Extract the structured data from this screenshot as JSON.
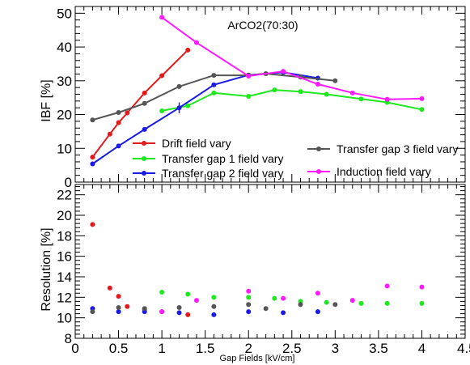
{
  "chart_data": {
    "type": "line",
    "xlabel": "Gap Fields [kV/cm]",
    "xlim": [
      0,
      4.5
    ],
    "x_ticks": [
      "0",
      "0.5",
      "1",
      "1.5",
      "2",
      "2.5",
      "3",
      "3.5",
      "4",
      "4.5"
    ],
    "annotation": "ArCO2(70:30)",
    "legend_placement": "lower-right of upper panel",
    "panels": [
      {
        "id": "ibf",
        "ylabel": "IBF [%]",
        "ylim": [
          0,
          52
        ],
        "y_ticks": [
          "0",
          "10",
          "20",
          "30",
          "40",
          "50"
        ],
        "style": "line+markers"
      },
      {
        "id": "resolution",
        "ylabel": "Resolution [%]",
        "ylim": [
          8,
          23
        ],
        "y_ticks": [
          "8",
          "10",
          "12",
          "14",
          "16",
          "18",
          "20",
          "22"
        ],
        "style": "markers"
      }
    ],
    "series": [
      {
        "name": "Drift field vary",
        "color": "#e31a1c",
        "ibf": [
          [
            0.2,
            7.4
          ],
          [
            0.4,
            14.2
          ],
          [
            0.5,
            17.6
          ],
          [
            0.6,
            20.5
          ],
          [
            0.8,
            26.4
          ],
          [
            1.0,
            31.5
          ],
          [
            1.3,
            39.1
          ]
        ],
        "resolution": [
          [
            0.2,
            19.1
          ],
          [
            0.4,
            12.9
          ],
          [
            0.5,
            12.1
          ],
          [
            0.6,
            11.1
          ],
          [
            0.8,
            10.8
          ],
          [
            1.0,
            10.6
          ],
          [
            1.3,
            10.3
          ]
        ]
      },
      {
        "name": "Transfer gap 1 field vary",
        "color": "#1ee81e",
        "ibf": [
          [
            1.0,
            21.1
          ],
          [
            1.3,
            22.6
          ],
          [
            1.6,
            26.4
          ],
          [
            2.0,
            25.4
          ],
          [
            2.3,
            27.3
          ],
          [
            2.6,
            26.8
          ],
          [
            2.9,
            26.0
          ],
          [
            3.3,
            24.6
          ],
          [
            3.6,
            23.6
          ],
          [
            4.0,
            21.5
          ]
        ],
        "resolution": [
          [
            1.0,
            12.5
          ],
          [
            1.3,
            12.3
          ],
          [
            1.6,
            12.0
          ],
          [
            2.0,
            12.0
          ],
          [
            2.3,
            11.9
          ],
          [
            2.6,
            11.6
          ],
          [
            2.9,
            11.5
          ],
          [
            3.3,
            11.4
          ],
          [
            3.6,
            11.4
          ],
          [
            4.0,
            11.4
          ]
        ]
      },
      {
        "name": "Transfer gap 2 field vary",
        "color": "#1a1ae6",
        "ibf": [
          [
            0.2,
            5.4
          ],
          [
            0.5,
            10.7
          ],
          [
            0.8,
            15.6
          ],
          [
            1.2,
            22.0
          ],
          [
            1.6,
            28.8
          ],
          [
            2.0,
            31.7
          ],
          [
            2.4,
            32.5
          ],
          [
            2.8,
            30.8
          ]
        ],
        "resolution": [
          [
            0.2,
            10.9
          ],
          [
            0.5,
            10.6
          ],
          [
            0.8,
            10.6
          ],
          [
            1.2,
            10.5
          ],
          [
            1.6,
            10.3
          ],
          [
            2.0,
            10.6
          ],
          [
            2.4,
            10.5
          ],
          [
            2.8,
            10.6
          ]
        ]
      },
      {
        "name": "Transfer gap 3 field vary",
        "color": "#555555",
        "ibf": [
          [
            0.2,
            18.4
          ],
          [
            0.5,
            20.6
          ],
          [
            0.8,
            23.3
          ],
          [
            1.2,
            28.3
          ],
          [
            1.6,
            31.6
          ],
          [
            2.0,
            31.6
          ],
          [
            2.2,
            32.1
          ],
          [
            2.6,
            31.1
          ],
          [
            3.0,
            30.0
          ]
        ],
        "resolution": [
          [
            0.2,
            10.6
          ],
          [
            0.5,
            11.0
          ],
          [
            0.8,
            10.9
          ],
          [
            1.2,
            11.0
          ],
          [
            1.6,
            11.1
          ],
          [
            2.0,
            11.3
          ],
          [
            2.2,
            10.9
          ],
          [
            2.6,
            11.3
          ],
          [
            3.0,
            11.3
          ]
        ]
      },
      {
        "name": "Induction field vary",
        "color": "#ff19ff",
        "ibf": [
          [
            1.0,
            48.8
          ],
          [
            1.4,
            41.3
          ],
          [
            2.0,
            31.4
          ],
          [
            2.4,
            32.8
          ],
          [
            2.8,
            29.0
          ],
          [
            3.2,
            26.4
          ],
          [
            3.6,
            24.5
          ],
          [
            4.0,
            24.7
          ]
        ],
        "resolution": [
          [
            1.0,
            10.6
          ],
          [
            1.4,
            11.7
          ],
          [
            2.0,
            12.6
          ],
          [
            2.4,
            11.9
          ],
          [
            2.8,
            12.4
          ],
          [
            3.2,
            11.7
          ],
          [
            3.6,
            13.1
          ],
          [
            4.0,
            13.0
          ]
        ]
      }
    ]
  }
}
